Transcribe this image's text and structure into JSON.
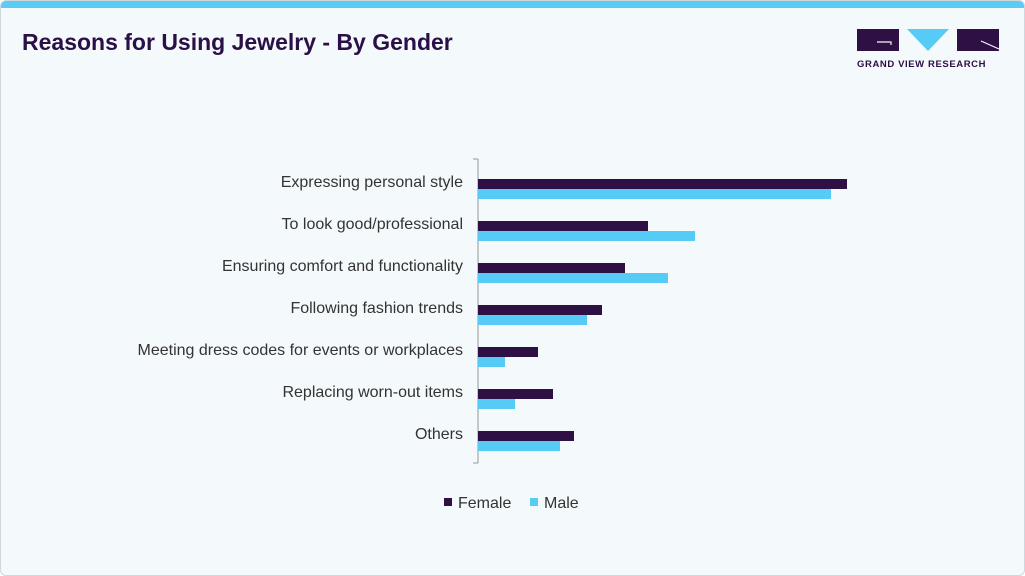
{
  "title": "Reasons for Using Jewelry - By Gender",
  "logo": {
    "text": "GRAND VIEW RESEARCH"
  },
  "colors": {
    "female": "#2e1045",
    "male": "#56cbf5",
    "title": "#2b0f47",
    "background": "#f4f9fc",
    "accent": "#5ccbf3"
  },
  "chart_data": {
    "type": "bar",
    "orientation": "horizontal",
    "title": "Reasons for Using Jewelry - By Gender",
    "categories": [
      "Expressing personal style",
      "To look good/professional",
      "Ensuring comfort and functionality",
      "Following fashion trends",
      "Meeting dress codes for events or workplaces",
      "Replacing worn-out items",
      "Others"
    ],
    "series": [
      {
        "name": "Female",
        "color": "#2e1045",
        "values": [
          36.9,
          17.0,
          14.7,
          12.4,
          6.0,
          7.5,
          9.6
        ]
      },
      {
        "name": "Male",
        "color": "#56cbf5",
        "values": [
          35.3,
          21.7,
          19.0,
          10.9,
          2.7,
          3.7,
          8.2
        ]
      }
    ],
    "value_axis_labels_shown": false,
    "values_note_units": "relative (no axis printed)",
    "grid": false,
    "legend": "bottom"
  }
}
